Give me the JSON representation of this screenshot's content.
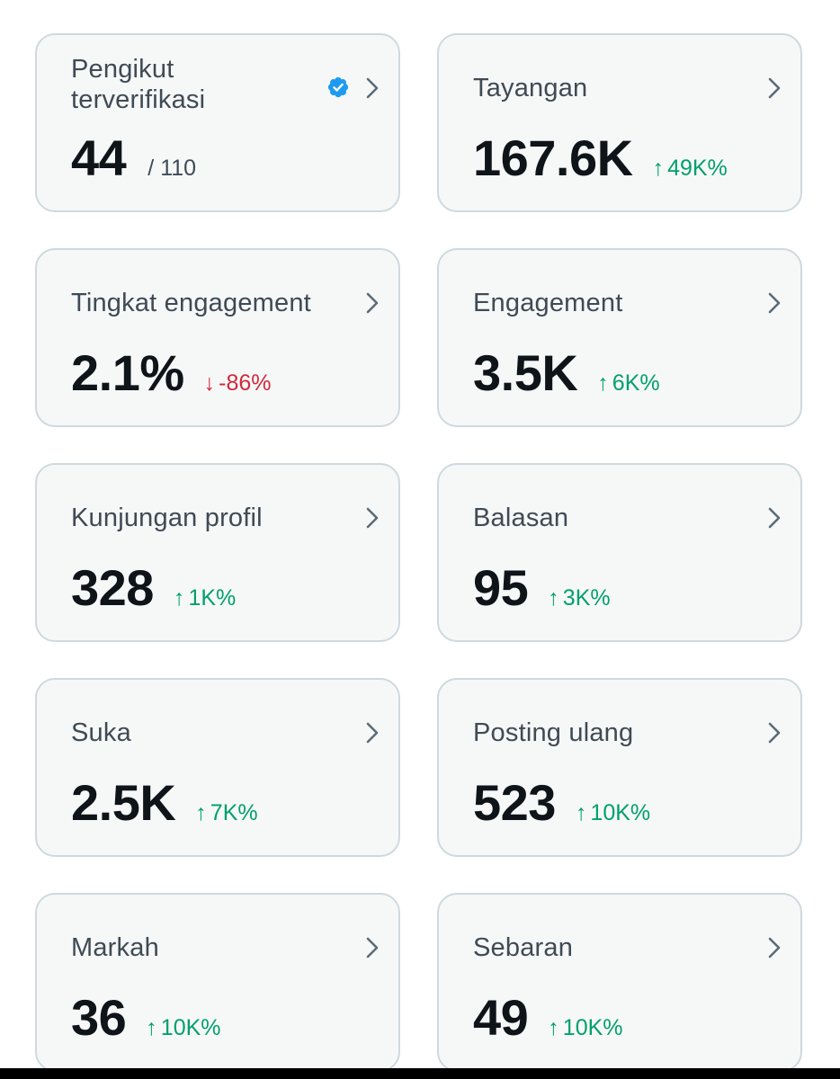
{
  "cards": [
    {
      "title": "Pengikut terverifikasi",
      "value": "44",
      "sub": "/ 110",
      "verified_icon": "verified-badge-icon",
      "accent": "#1d9bf0"
    },
    {
      "title": "Tayangan",
      "value": "167.6K",
      "trend": "up",
      "arrow": "↑",
      "delta": "49K%"
    },
    {
      "title": "Tingkat engagement",
      "value": "2.1%",
      "trend": "down",
      "arrow": "↓",
      "delta": "-86%"
    },
    {
      "title": "Engagement",
      "value": "3.5K",
      "trend": "up",
      "arrow": "↑",
      "delta": "6K%"
    },
    {
      "title": "Kunjungan profil",
      "value": "328",
      "trend": "up",
      "arrow": "↑",
      "delta": "1K%"
    },
    {
      "title": "Balasan",
      "value": "95",
      "trend": "up",
      "arrow": "↑",
      "delta": "3K%"
    },
    {
      "title": "Suka",
      "value": "2.5K",
      "trend": "up",
      "arrow": "↑",
      "delta": "7K%"
    },
    {
      "title": "Posting ulang",
      "value": "523",
      "trend": "up",
      "arrow": "↑",
      "delta": "10K%"
    },
    {
      "title": "Markah",
      "value": "36",
      "trend": "up",
      "arrow": "↑",
      "delta": "10K%"
    },
    {
      "title": "Sebaran",
      "value": "49",
      "trend": "up",
      "arrow": "↑",
      "delta": "10K%"
    }
  ],
  "colors": {
    "up": "#00a06b",
    "down": "#d1283a",
    "verified": "#1d9bf0"
  }
}
